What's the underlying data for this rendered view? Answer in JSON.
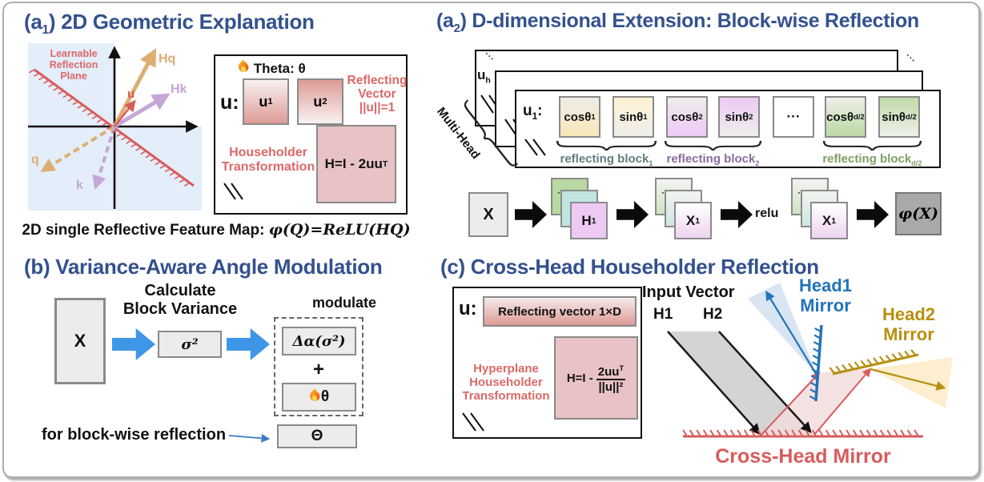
{
  "colors": {
    "title_blue": "#33518e",
    "accent_red": "#dc6868",
    "mirror_red": "#d85c5c",
    "tan_orange": "#dcae72",
    "lavender": "#c5a6d6",
    "plot_bg": "#e4eefa",
    "pink_fill": "#e8c2c5",
    "salmon_gradient": "#dd9b96",
    "yellow_block": "#f8e7b8",
    "purple_block": "#edc9f5",
    "green_block": "#b9d8a2",
    "cyan_block": "#c0e5e0",
    "pink_block": "#eccaf4",
    "gray_box": "#ececec",
    "dark_gray_box": "#a9a9a9",
    "flow_blue": "#3e97e6",
    "head1_blue": "#2273b8",
    "head2_gold": "#b8900f"
  },
  "icons": {
    "flame": "flame-icon"
  },
  "a1": {
    "title_pre": "(a",
    "title_sub": "1",
    "title_post": ") 2D Geometric Explanation",
    "plot": {
      "plane_label": [
        "Learnable",
        "Reflection",
        "Plane"
      ],
      "hq": "Hq",
      "u": "u",
      "hk": "Hk",
      "q": "q",
      "k": "k"
    },
    "caption_pre": "2D single Reflective Feature Map: ",
    "caption_math": "φ(Q)=ReLU(HQ)",
    "info": {
      "theta": "Theta: θ",
      "u_label": "u:",
      "u1_pre": "u",
      "u1_sub": "1",
      "u2_pre": "u",
      "u2_sub": "2",
      "reflecting": [
        "Reflecting",
        "Vector",
        "||u||=1"
      ],
      "householder": [
        "Householder",
        "Transformation"
      ],
      "formula_pre": "H=I - 2uu",
      "formula_sup": "T"
    }
  },
  "a2": {
    "title_pre": "(a",
    "title_sub": "2",
    "title_post": ") D-dimensional Extension: Block-wise Reflection",
    "uh_pre": "u",
    "uh_sub": "h",
    "dots": "···",
    "multi_head": "Multi-Head",
    "u1_pre": "u",
    "u1_sub": "1",
    "u1_post": ":",
    "blocks": [
      {
        "main": "cosθ",
        "sub": "1"
      },
      {
        "main": "sinθ",
        "sub": "1"
      },
      {
        "main": "cosθ",
        "sub": "2"
      },
      {
        "main": "sinθ",
        "sub": "2"
      },
      {
        "main": "···",
        "sub": ""
      },
      {
        "main": "cosθ",
        "sub": "d/2"
      },
      {
        "main": "sinθ",
        "sub": "d/2"
      }
    ],
    "brace_labels": [
      {
        "main": "reflecting block",
        "sub": "1",
        "color": "#5f7d7d"
      },
      {
        "main": "reflecting block",
        "sub": "2",
        "color": "#8a6b9e"
      },
      {
        "main": "reflecting block",
        "sub": "d/2",
        "color": "#7f9e66"
      }
    ],
    "pipeline": {
      "x": "X",
      "h1_pre": "H",
      "h1_sub": "1",
      "x1_pre": "X",
      "x1_sub": "1",
      "relu": "relu",
      "phi": "φ(X)"
    }
  },
  "b": {
    "title": "(b) Variance-Aware Angle Modulation",
    "x": "X",
    "calc_label": [
      "Calculate",
      "Block Variance"
    ],
    "sigma": "σ²",
    "modulate": "modulate",
    "delta_alpha": "Δα(σ²)",
    "plus": "+",
    "theta": "θ",
    "theta_out": "Θ",
    "note": "for block-wise reflection"
  },
  "c": {
    "title": "(c) Cross-Head Householder Reflection",
    "u_label": "u:",
    "reflecting_vector": "Reflecting vector 1×D",
    "hyperplane": [
      "Hyperplane",
      "Householder",
      "Transformation"
    ],
    "formula_pre": "H=I -",
    "num_pre": "2uu",
    "num_sup": "T",
    "den": "||u||²",
    "input_vector": "Input Vector",
    "h1": "H1",
    "h2": "H2",
    "head1": [
      "Head1",
      "Mirror"
    ],
    "head2": [
      "Head2",
      "Mirror"
    ],
    "cross_head": "Cross-Head Mirror"
  }
}
